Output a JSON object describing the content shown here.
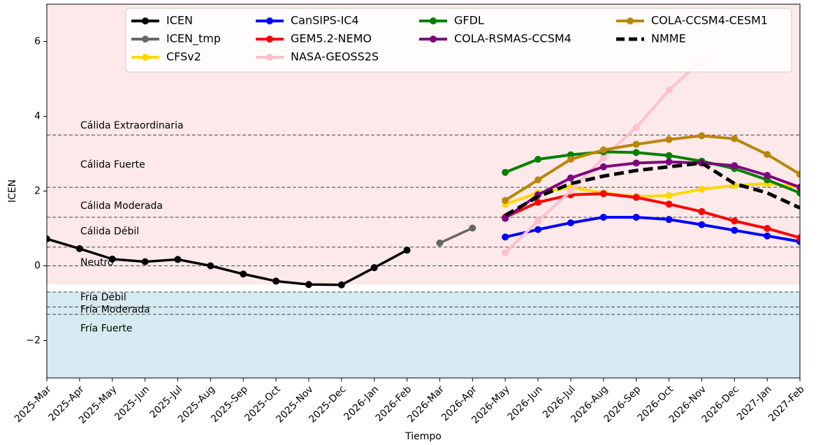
{
  "chart_data": {
    "type": "line",
    "x_label": "Tiempo",
    "y_label": "ICEN",
    "categories": [
      "2025-Mar",
      "2025-Apr",
      "2025-May",
      "2025-Jun",
      "2025-Jul",
      "2025-Aug",
      "2025-Sep",
      "2025-Oct",
      "2025-Nov",
      "2025-Dec",
      "2026-Jan",
      "2026-Feb",
      "2026-Mar",
      "2026-Apr",
      "2026-May",
      "2026-Jun",
      "2026-Jul",
      "2026-Aug",
      "2026-Sep",
      "2026-Oct",
      "2026-Nov",
      "2026-Dec",
      "2027-Jan",
      "2027-Feb"
    ],
    "ylim": [
      -3,
      7
    ],
    "yticks": [
      {
        "value": -2,
        "label": "−2"
      },
      0,
      2,
      4,
      6
    ],
    "bands": [
      {
        "from": -0.5,
        "to": 7,
        "color": "#fde9e9"
      },
      {
        "from": -3,
        "to": -0.7,
        "color": "#d5ebf1"
      }
    ],
    "thresholds": [
      3.5,
      2.1,
      1.3,
      0.5,
      0,
      -0.7,
      -1.1,
      -1.3
    ],
    "annotations": [
      {
        "text": "Cálida Extraordinaria",
        "y": 3.75
      },
      {
        "text": "Cálida Fuerte",
        "y": 2.7
      },
      {
        "text": "Cálida Moderada",
        "y": 1.6
      },
      {
        "text": "Cálida Débil",
        "y": 0.92
      },
      {
        "text": "Neutro",
        "y": 0.08
      },
      {
        "text": "Fría Débil",
        "y": -0.85
      },
      {
        "text": "Fría Moderada",
        "y": -1.18
      },
      {
        "text": "Fría Fuerte",
        "y": -1.68
      }
    ],
    "legend_loc": "upper center",
    "legend_columns": 4,
    "series": [
      {
        "name": "ICEN",
        "color": "#000000",
        "values": [
          0.72,
          0.46,
          0.18,
          0.11,
          0.17,
          0.0,
          -0.22,
          -0.41,
          -0.5,
          -0.51,
          -0.05,
          0.42,
          null,
          null,
          null,
          null,
          null,
          null,
          null,
          null,
          null,
          null,
          null,
          null
        ]
      },
      {
        "name": "ICEN_tmp",
        "color": "#666666",
        "values": [
          null,
          null,
          null,
          null,
          null,
          null,
          null,
          null,
          null,
          null,
          null,
          null,
          0.61,
          1.01,
          null,
          null,
          null,
          null,
          null,
          null,
          null,
          null,
          null,
          null
        ]
      },
      {
        "name": "CFSv2",
        "color": "#ffd700",
        "values": [
          null,
          null,
          null,
          null,
          null,
          null,
          null,
          null,
          null,
          null,
          null,
          null,
          null,
          null,
          1.65,
          1.95,
          2.1,
          1.95,
          1.85,
          1.88,
          2.05,
          2.15,
          2.2,
          2.1
        ]
      },
      {
        "name": "CanSIPS-IC4",
        "color": "#0000ff",
        "values": [
          null,
          null,
          null,
          null,
          null,
          null,
          null,
          null,
          null,
          null,
          null,
          null,
          null,
          null,
          0.77,
          0.97,
          1.15,
          1.3,
          1.3,
          1.24,
          1.1,
          0.95,
          0.8,
          0.65
        ]
      },
      {
        "name": "GEM5.2-NEMO",
        "color": "#ff0000",
        "values": [
          null,
          null,
          null,
          null,
          null,
          null,
          null,
          null,
          null,
          null,
          null,
          null,
          null,
          null,
          1.3,
          1.7,
          1.9,
          1.93,
          1.83,
          1.65,
          1.45,
          1.2,
          1.0,
          0.75
        ]
      },
      {
        "name": "NASA-GEOSS2S",
        "color": "#ffc0cb",
        "values": [
          null,
          null,
          null,
          null,
          null,
          null,
          null,
          null,
          null,
          null,
          null,
          null,
          null,
          null,
          0.35,
          1.2,
          2.0,
          2.9,
          3.7,
          4.7,
          5.5,
          null,
          null,
          null
        ]
      },
      {
        "name": "GFDL",
        "color": "#008000",
        "values": [
          null,
          null,
          null,
          null,
          null,
          null,
          null,
          null,
          null,
          null,
          null,
          null,
          null,
          null,
          2.5,
          2.85,
          2.97,
          3.05,
          3.03,
          2.95,
          2.8,
          2.6,
          2.3,
          1.95
        ]
      },
      {
        "name": "COLA-RSMAS-CCSM4",
        "color": "#800080",
        "values": [
          null,
          null,
          null,
          null,
          null,
          null,
          null,
          null,
          null,
          null,
          null,
          null,
          null,
          null,
          1.27,
          1.9,
          2.35,
          2.65,
          2.75,
          2.78,
          2.75,
          2.68,
          2.42,
          2.1
        ]
      },
      {
        "name": "COLA-CCSM4-CESM1",
        "color": "#b8860b",
        "values": [
          null,
          null,
          null,
          null,
          null,
          null,
          null,
          null,
          null,
          null,
          null,
          null,
          null,
          null,
          1.75,
          2.3,
          2.85,
          3.1,
          3.25,
          3.38,
          3.48,
          3.4,
          2.98,
          2.45
        ]
      },
      {
        "name": "NMME",
        "color": "#000000",
        "dashed": true,
        "markers": false,
        "values": [
          null,
          null,
          null,
          null,
          null,
          null,
          null,
          null,
          null,
          null,
          null,
          null,
          null,
          null,
          1.35,
          1.85,
          2.2,
          2.4,
          2.55,
          2.65,
          2.75,
          2.2,
          1.95,
          1.55
        ]
      }
    ]
  }
}
